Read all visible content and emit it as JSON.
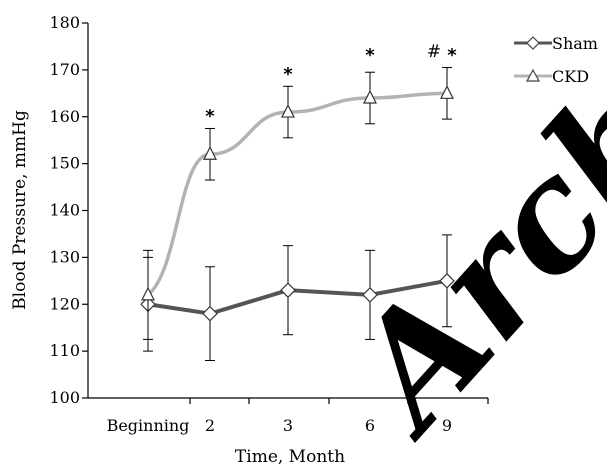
{
  "chart_data": {
    "type": "line",
    "title": "",
    "xlabel": "Time, Month",
    "ylabel": "Blood Pressure, mmHg",
    "categories": [
      "Beginning",
      "2",
      "3",
      "6",
      "9"
    ],
    "ylim": [
      100,
      180
    ],
    "yticks": [
      100,
      110,
      120,
      130,
      140,
      150,
      160,
      170,
      180
    ],
    "grid": false,
    "legend_position": "top-right",
    "series": [
      {
        "name": "Sham",
        "marker": "diamond",
        "color": "#555555",
        "values": [
          120,
          118,
          123,
          122,
          125
        ],
        "error": [
          10,
          10,
          9.5,
          9.5,
          9.8
        ]
      },
      {
        "name": "CKD",
        "marker": "triangle",
        "color": "#b3b3b3",
        "values": [
          122,
          152,
          161,
          164,
          165
        ],
        "error": [
          9.5,
          5.5,
          5.5,
          5.5,
          5.5
        ]
      }
    ],
    "annotations": [
      {
        "text": "*",
        "category": "2",
        "y": 161
      },
      {
        "text": "*",
        "category": "3",
        "y": 170
      },
      {
        "text": "*",
        "category": "6",
        "y": 174
      },
      {
        "text": "#",
        "category": "9",
        "y": 174
      },
      {
        "text": "*",
        "category": "9",
        "y": 174
      }
    ]
  },
  "watermark": "Archive"
}
